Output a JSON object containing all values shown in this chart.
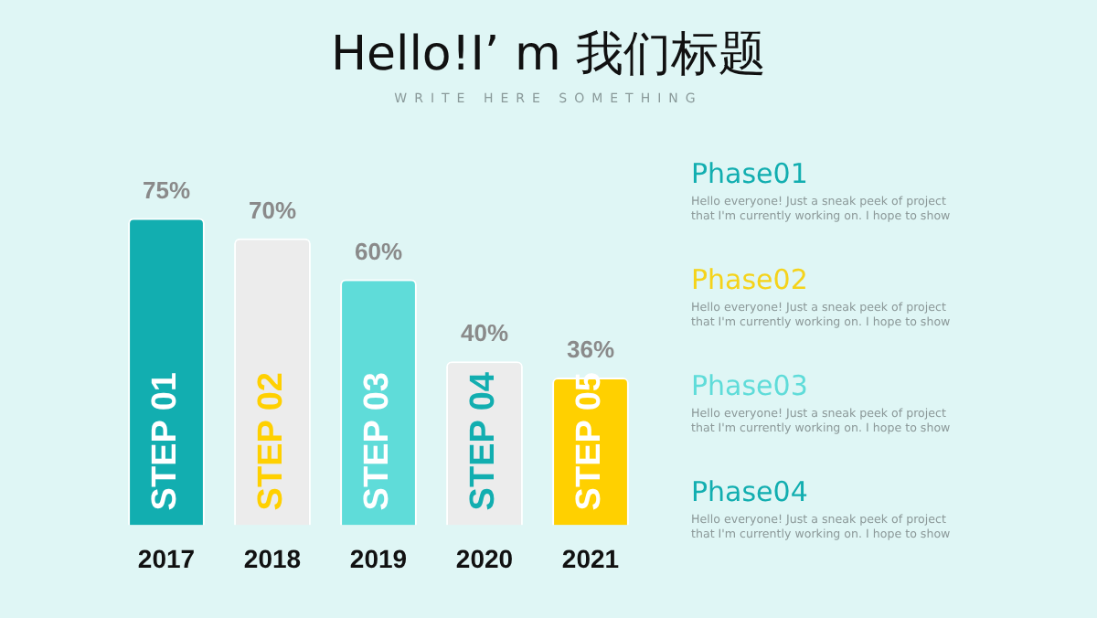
{
  "chart_data": {
    "type": "bar",
    "title": "Hello!I’ m 我们标题",
    "subtitle": "WRITE HERE SOMETHING",
    "categories": [
      "2017",
      "2018",
      "2019",
      "2020",
      "2021"
    ],
    "values": [
      75,
      70,
      60,
      40,
      36
    ],
    "colors": [
      "#12aeb0",
      "#ececec",
      "#5fdcd9",
      "#ececec",
      "#ffd000"
    ],
    "value_labels": [
      "75%",
      "70%",
      "60%",
      "40%",
      "36%"
    ],
    "grid": false,
    "legend": false,
    "tick_labels": "x",
    "annotations": [
      "STEP 01",
      "STEP 02",
      "STEP 03",
      "STEP 04",
      "STEP 05",
      "Phase01",
      "Hello everyone! Just a sneak peek of project that I'm currently working on. I hope to show",
      "Phase02",
      "Hello everyone! Just a sneak peek of project that I'm currently working on. I hope to show",
      "Phase03",
      "Hello everyone! Just a sneak peek of project that I'm currently working on. I hope to show",
      "Phase04",
      "Hello everyone! Just a sneak peek of project that I'm currently working on. I hope to show"
    ]
  }
}
